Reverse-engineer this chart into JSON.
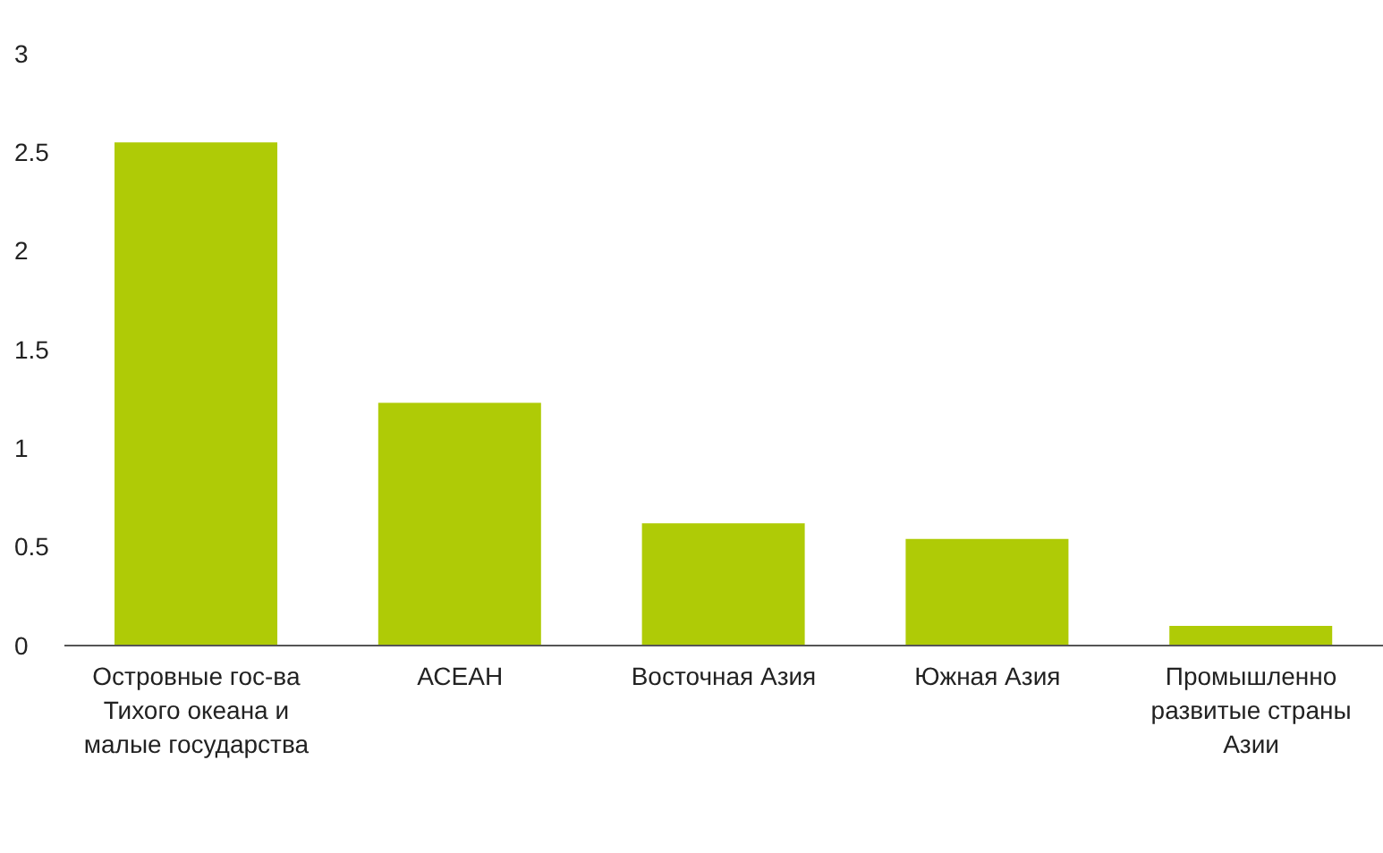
{
  "chart_data": {
    "type": "bar",
    "categories": [
      "Островные гос-ва Тихого океана и малые государства",
      "АСЕАН",
      "Восточная Азия",
      "Южная Азия",
      "Промышленно развитые страны Азии"
    ],
    "values": [
      2.55,
      1.23,
      0.62,
      0.54,
      0.1
    ],
    "color": "#afcb06",
    "ylim": [
      0,
      3
    ],
    "yticks": [
      0,
      0.5,
      1,
      1.5,
      2,
      2.5,
      3
    ],
    "grid": false
  }
}
